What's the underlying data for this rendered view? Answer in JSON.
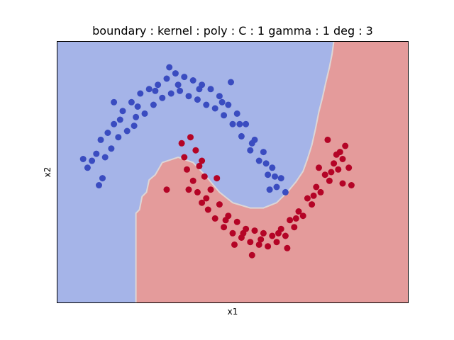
{
  "chart_data": {
    "type": "scatter",
    "title": "boundary : kernel : poly : C : 1  gamma : 1 deg : 3",
    "xlabel": "x1",
    "ylabel": "x2",
    "xlim": [
      -1.5,
      2.5
    ],
    "ylim": [
      -1.25,
      1.75
    ],
    "grid": false,
    "legend": "none",
    "ticks": "hidden",
    "colors": {
      "class_0_region": "#a5b4e8",
      "class_1_region": "#e49b9b",
      "class_0_points": "#3a4cc0",
      "class_1_points": "#b40426",
      "boundary_edge": "#ddd6d6"
    },
    "decision_boundary": [
      [
        -0.6,
        -1.25
      ],
      [
        -0.6,
        -0.22
      ],
      [
        -0.56,
        -0.18
      ],
      [
        -0.53,
        -0.03
      ],
      [
        -0.48,
        0.02
      ],
      [
        -0.45,
        0.16
      ],
      [
        -0.38,
        0.22
      ],
      [
        -0.3,
        0.36
      ],
      [
        -0.12,
        0.42
      ],
      [
        0.05,
        0.36
      ],
      [
        0.2,
        0.2
      ],
      [
        0.35,
        0.02
      ],
      [
        0.5,
        -0.1
      ],
      [
        0.7,
        -0.16
      ],
      [
        0.85,
        -0.16
      ],
      [
        1.0,
        -0.1
      ],
      [
        1.12,
        0.02
      ],
      [
        1.22,
        0.14
      ],
      [
        1.3,
        0.26
      ],
      [
        1.35,
        0.4
      ],
      [
        1.4,
        0.56
      ],
      [
        1.44,
        0.74
      ],
      [
        1.48,
        0.94
      ],
      [
        1.52,
        1.1
      ],
      [
        1.56,
        1.28
      ],
      [
        1.6,
        1.45
      ],
      [
        1.63,
        1.6
      ],
      [
        1.65,
        1.75
      ]
    ],
    "series": [
      {
        "class": 0,
        "points": [
          [
            -1.1,
            0.38
          ],
          [
            -1.05,
            0.46
          ],
          [
            -0.98,
            0.18
          ],
          [
            -1.0,
            0.62
          ],
          [
            -0.92,
            0.7
          ],
          [
            -0.88,
            0.52
          ],
          [
            -0.85,
            0.8
          ],
          [
            -0.8,
            0.65
          ],
          [
            -0.75,
            0.95
          ],
          [
            -0.7,
            0.72
          ],
          [
            -0.65,
            1.05
          ],
          [
            -0.6,
            0.88
          ],
          [
            -0.55,
            1.15
          ],
          [
            -0.5,
            0.92
          ],
          [
            -0.45,
            1.2
          ],
          [
            -0.4,
            1.02
          ],
          [
            -0.35,
            1.25
          ],
          [
            -0.3,
            1.1
          ],
          [
            -0.25,
            1.32
          ],
          [
            -0.2,
            1.15
          ],
          [
            -0.15,
            1.38
          ],
          [
            -0.1,
            1.18
          ],
          [
            -0.05,
            1.34
          ],
          [
            0.0,
            1.12
          ],
          [
            0.05,
            1.3
          ],
          [
            0.1,
            1.08
          ],
          [
            0.15,
            1.25
          ],
          [
            0.2,
            1.02
          ],
          [
            0.25,
            1.2
          ],
          [
            0.3,
            0.98
          ],
          [
            0.35,
            1.12
          ],
          [
            0.4,
            0.9
          ],
          [
            0.45,
            1.02
          ],
          [
            0.5,
            0.8
          ],
          [
            0.55,
            0.92
          ],
          [
            0.6,
            0.66
          ],
          [
            0.65,
            0.8
          ],
          [
            0.7,
            0.5
          ],
          [
            0.75,
            0.62
          ],
          [
            0.8,
            0.38
          ],
          [
            0.85,
            0.48
          ],
          [
            0.9,
            0.22
          ],
          [
            0.95,
            0.3
          ],
          [
            1.0,
            0.08
          ],
          [
            1.05,
            0.18
          ],
          [
            -1.2,
            0.4
          ],
          [
            -1.15,
            0.3
          ],
          [
            -0.95,
            0.42
          ],
          [
            -0.78,
            0.85
          ],
          [
            -0.58,
            1.0
          ],
          [
            -0.38,
            1.18
          ],
          [
            -0.12,
            1.25
          ],
          [
            0.12,
            1.2
          ],
          [
            0.38,
            1.05
          ],
          [
            0.58,
            0.8
          ],
          [
            0.72,
            0.58
          ],
          [
            0.88,
            0.35
          ],
          [
            0.98,
            0.2
          ],
          [
            -0.62,
            0.78
          ],
          [
            -0.22,
            1.45
          ],
          [
            -1.02,
            0.1
          ],
          [
            0.48,
            1.28
          ],
          [
            -0.85,
            1.05
          ],
          [
            0.92,
            0.05
          ],
          [
            1.1,
            0.02
          ]
        ]
      },
      {
        "class": 1,
        "points": [
          [
            -0.08,
            0.58
          ],
          [
            -0.05,
            0.42
          ],
          [
            -0.02,
            0.28
          ],
          [
            0.02,
            0.65
          ],
          [
            0.05,
            0.15
          ],
          [
            0.08,
            0.5
          ],
          [
            0.1,
            0.02
          ],
          [
            0.12,
            0.32
          ],
          [
            0.15,
            -0.1
          ],
          [
            0.18,
            0.2
          ],
          [
            0.22,
            -0.18
          ],
          [
            0.25,
            0.05
          ],
          [
            0.3,
            -0.28
          ],
          [
            0.35,
            -0.12
          ],
          [
            0.4,
            -0.38
          ],
          [
            0.45,
            -0.25
          ],
          [
            0.5,
            -0.45
          ],
          [
            0.55,
            -0.32
          ],
          [
            0.6,
            -0.5
          ],
          [
            0.65,
            -0.4
          ],
          [
            0.7,
            -0.55
          ],
          [
            0.75,
            -0.42
          ],
          [
            0.8,
            -0.58
          ],
          [
            0.85,
            -0.45
          ],
          [
            0.9,
            -0.6
          ],
          [
            0.95,
            -0.48
          ],
          [
            1.0,
            -0.55
          ],
          [
            1.05,
            -0.4
          ],
          [
            1.1,
            -0.48
          ],
          [
            1.15,
            -0.3
          ],
          [
            1.2,
            -0.38
          ],
          [
            1.25,
            -0.2
          ],
          [
            1.3,
            -0.25
          ],
          [
            1.35,
            -0.05
          ],
          [
            1.4,
            -0.12
          ],
          [
            1.45,
            0.08
          ],
          [
            1.5,
            0.02
          ],
          [
            1.55,
            0.22
          ],
          [
            1.6,
            0.15
          ],
          [
            1.65,
            0.35
          ],
          [
            1.7,
            0.28
          ],
          [
            1.72,
            0.48
          ],
          [
            1.75,
            0.4
          ],
          [
            1.78,
            0.55
          ],
          [
            1.82,
            0.3
          ],
          [
            0.0,
            0.05
          ],
          [
            0.2,
            -0.05
          ],
          [
            0.42,
            -0.3
          ],
          [
            0.62,
            -0.45
          ],
          [
            0.82,
            -0.52
          ],
          [
            1.02,
            -0.45
          ],
          [
            1.22,
            -0.28
          ],
          [
            1.42,
            -0.02
          ],
          [
            1.62,
            0.25
          ],
          [
            1.68,
            0.45
          ],
          [
            -0.25,
            0.05
          ],
          [
            1.85,
            0.1
          ],
          [
            0.72,
            -0.7
          ],
          [
            1.58,
            0.62
          ],
          [
            0.32,
            0.18
          ],
          [
            1.12,
            -0.62
          ],
          [
            0.52,
            -0.58
          ],
          [
            1.75,
            0.12
          ],
          [
            0.15,
            0.38
          ],
          [
            1.48,
            0.3
          ]
        ]
      }
    ]
  }
}
